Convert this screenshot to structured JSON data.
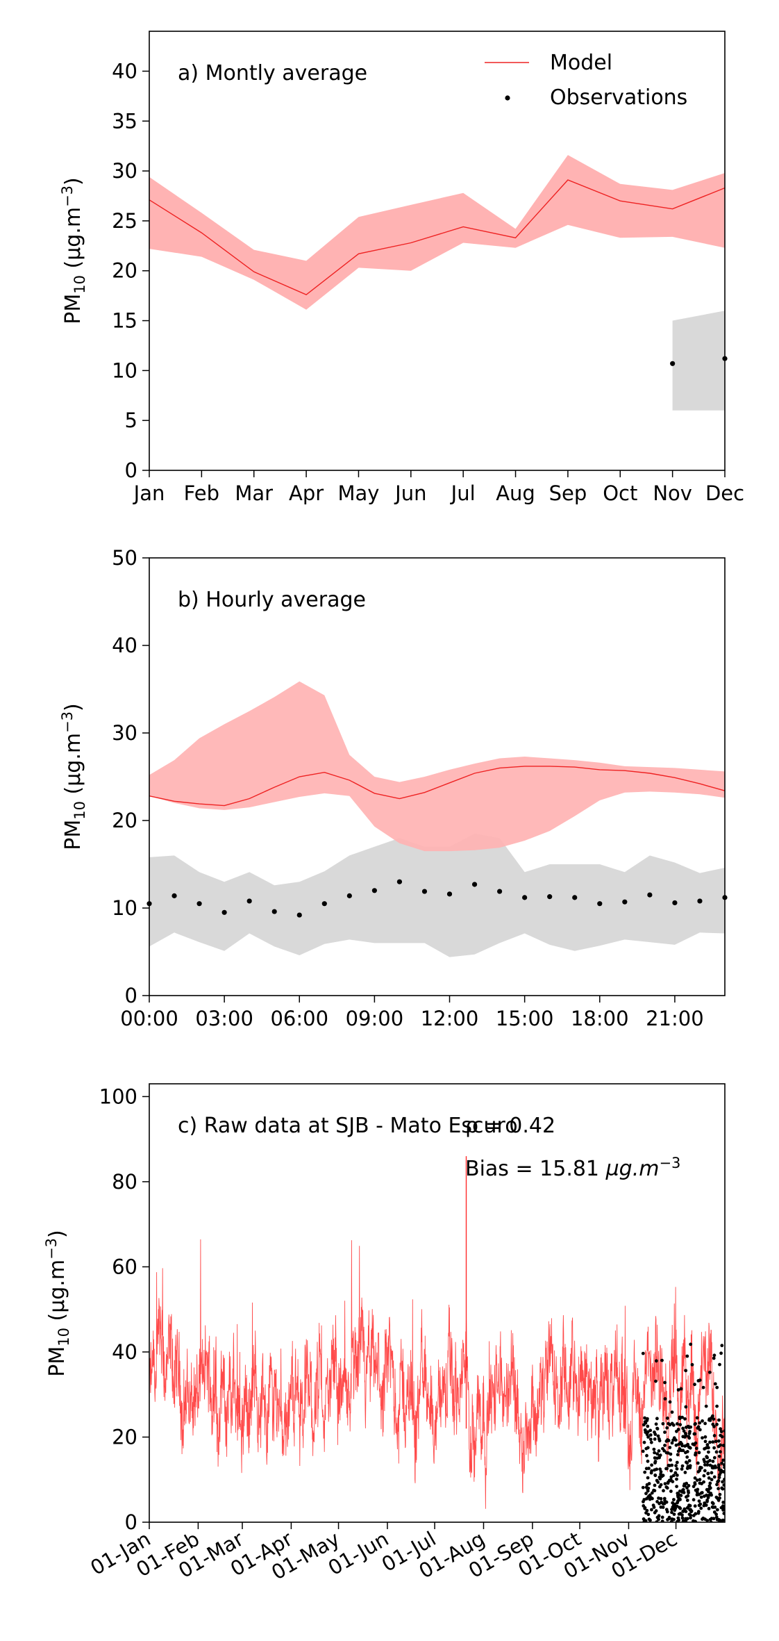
{
  "chart_data": [
    {
      "type": "line",
      "annotation": "a) Montly average",
      "ylabel": "PM10 (µg.m-3)",
      "xlabel": "",
      "categories": [
        "Jan",
        "Feb",
        "Mar",
        "Apr",
        "May",
        "Jun",
        "Jul",
        "Aug",
        "Sep",
        "Oct",
        "Nov",
        "Dec"
      ],
      "ylim": [
        0,
        44
      ],
      "yticks": [
        0,
        5,
        10,
        15,
        20,
        25,
        30,
        35,
        40
      ],
      "legend": {
        "placement": "top-right",
        "entries": [
          "Model",
          "Observations"
        ]
      },
      "series": [
        {
          "name": "Model",
          "values": [
            27.1,
            23.8,
            19.9,
            17.6,
            21.7,
            22.8,
            24.4,
            23.3,
            29.1,
            27.0,
            26.2,
            28.3
          ],
          "band_low": [
            22.2,
            21.4,
            19.1,
            16.1,
            20.3,
            20.0,
            22.8,
            22.3,
            24.6,
            23.3,
            23.4,
            22.3
          ],
          "band_high": [
            29.4,
            25.8,
            22.1,
            21.0,
            25.4,
            26.6,
            27.8,
            24.2,
            31.6,
            28.7,
            28.1,
            29.8
          ]
        },
        {
          "name": "Observations",
          "values": [
            null,
            null,
            null,
            null,
            null,
            null,
            null,
            null,
            null,
            null,
            10.7,
            11.2
          ],
          "band_low": [
            null,
            null,
            null,
            null,
            null,
            null,
            null,
            null,
            null,
            null,
            6.0,
            6.0
          ],
          "band_high": [
            null,
            null,
            null,
            null,
            null,
            null,
            null,
            null,
            null,
            null,
            15.0,
            16.0
          ]
        }
      ],
      "colors": {
        "model_line": "#ee2222",
        "model_band": "#ffb3b3",
        "obs_point": "#000000",
        "obs_band": "#d9d9d9"
      }
    },
    {
      "type": "line",
      "annotation": "b) Hourly average",
      "ylabel": "PM10 (µg.m-3)",
      "xlabel": "",
      "x": [
        0,
        1,
        2,
        3,
        4,
        5,
        6,
        7,
        8,
        9,
        10,
        11,
        12,
        13,
        14,
        15,
        16,
        17,
        18,
        19,
        20,
        21,
        22,
        23
      ],
      "xtick_labels": [
        "00:00",
        "03:00",
        "06:00",
        "09:00",
        "12:00",
        "15:00",
        "18:00",
        "21:00"
      ],
      "xtick_values": [
        0,
        3,
        6,
        9,
        12,
        15,
        18,
        21
      ],
      "ylim": [
        0,
        50
      ],
      "yticks": [
        0,
        10,
        20,
        30,
        40,
        50
      ],
      "series": [
        {
          "name": "Model",
          "values": [
            22.8,
            22.2,
            21.9,
            21.7,
            22.5,
            23.8,
            25.0,
            25.5,
            24.6,
            23.1,
            22.5,
            23.2,
            24.3,
            25.4,
            26.0,
            26.2,
            26.2,
            26.1,
            25.8,
            25.7,
            25.4,
            24.9,
            24.2,
            23.4
          ],
          "band_low": [
            22.8,
            22.0,
            21.4,
            21.2,
            21.5,
            22.1,
            22.7,
            23.1,
            22.8,
            19.3,
            17.4,
            16.5,
            16.5,
            16.6,
            16.9,
            17.7,
            18.8,
            20.5,
            22.3,
            23.2,
            23.3,
            23.2,
            23.0,
            22.6
          ],
          "band_high": [
            25.2,
            26.9,
            29.4,
            31.0,
            32.5,
            34.1,
            35.9,
            34.3,
            27.5,
            25.0,
            24.4,
            25.0,
            25.8,
            26.5,
            27.1,
            27.3,
            27.1,
            26.9,
            26.6,
            26.2,
            26.1,
            26.0,
            25.8,
            25.6
          ]
        },
        {
          "name": "Observations",
          "values": [
            10.5,
            11.4,
            10.5,
            9.5,
            10.8,
            9.6,
            9.2,
            10.5,
            11.4,
            12.0,
            13.0,
            11.9,
            11.6,
            12.7,
            11.9,
            11.2,
            11.3,
            11.2,
            10.5,
            10.7,
            11.5,
            10.6,
            10.8,
            11.2
          ],
          "band_low": [
            5.6,
            7.2,
            6.1,
            5.1,
            7.1,
            5.6,
            4.6,
            5.9,
            6.4,
            6.0,
            6.0,
            6.0,
            4.4,
            4.7,
            6.0,
            7.1,
            5.8,
            5.1,
            5.7,
            6.4,
            6.1,
            5.8,
            7.2,
            7.1
          ],
          "band_high": [
            15.8,
            16.0,
            14.1,
            13.0,
            14.1,
            12.6,
            13.0,
            14.2,
            16.0,
            17.0,
            18.0,
            17.0,
            17.0,
            18.5,
            18.0,
            14.1,
            15.0,
            15.0,
            15.0,
            14.1,
            16.0,
            15.2,
            14.0,
            14.6
          ]
        }
      ],
      "colors": {
        "model_line": "#ee2222",
        "model_band": "#ffb3b3",
        "obs_point": "#000000",
        "obs_band": "#d9d9d9"
      }
    },
    {
      "type": "line",
      "annotation": "c) Raw data at SJB - Mato Escuro",
      "stats_text": "ρ = 0.42",
      "bias_prefix": "Bias = 15.81 ",
      "bias_unit": "µg.m",
      "bias_exp": "−3",
      "ylabel": "PM10 (µg.m-3)",
      "xlabel": "",
      "xlim": [
        0,
        365
      ],
      "xtick_labels": [
        "01-Jan",
        "01-Feb",
        "01-Mar",
        "01-Apr",
        "01-May",
        "01-Jun",
        "01-Jul",
        "01-Aug",
        "01-Sep",
        "01-Oct",
        "01-Nov",
        "01-Dec"
      ],
      "xtick_values": [
        0,
        31,
        59,
        90,
        120,
        151,
        181,
        212,
        243,
        273,
        304,
        334
      ],
      "ylim": [
        0,
        103
      ],
      "yticks": [
        0,
        20,
        40,
        60,
        80,
        100
      ],
      "series": [
        {
          "name": "Model",
          "note": "hourly raw series, dense",
          "typical_range": [
            10,
            50
          ],
          "max_spike": 86
        },
        {
          "name": "Observations",
          "start_day": 313,
          "end_day": 365,
          "typical_range": [
            0,
            25
          ],
          "max_value": 42
        }
      ],
      "colors": {
        "model_line": "#ff2a2a",
        "obs_point": "#000000"
      }
    }
  ],
  "labels": {
    "ylabel_main": "PM",
    "ylabel_sub": "10",
    "ylabel_rest": " (µg.m",
    "ylabel_exp": "−3",
    "ylabel_close": ")"
  }
}
